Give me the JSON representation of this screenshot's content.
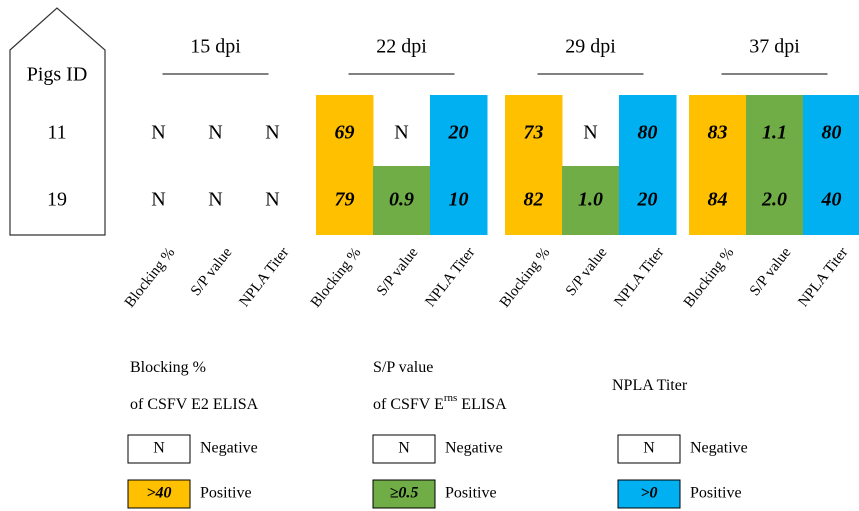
{
  "pigs_label": "Pigs ID",
  "rows": [
    "11",
    "19"
  ],
  "columns": [
    {
      "name": "Blocking %",
      "color": "#FFC000"
    },
    {
      "name": "S/P value",
      "color": "#70AD47"
    },
    {
      "name": "NPLA Titer",
      "color": "#00B0F0"
    }
  ],
  "groups": [
    {
      "label": "15 dpi",
      "cells": [
        [
          "N",
          "N",
          "N"
        ],
        [
          "N",
          "N",
          "N"
        ]
      ]
    },
    {
      "label": "22 dpi",
      "cells": [
        [
          "69",
          "N",
          "20"
        ],
        [
          "79",
          "0.9",
          "10"
        ]
      ]
    },
    {
      "label": "29 dpi",
      "cells": [
        [
          "73",
          "N",
          "80"
        ],
        [
          "82",
          "1.0",
          "20"
        ]
      ]
    },
    {
      "label": "37 dpi",
      "cells": [
        [
          "83",
          "1.1",
          "80"
        ],
        [
          "84",
          "2.0",
          "40"
        ]
      ]
    }
  ],
  "legend": [
    {
      "title": [
        [
          "Blocking %"
        ],
        [
          "of CSFV E2 ELISA"
        ]
      ],
      "negative_key": "N",
      "negative": "Negative",
      "positive_key": ">40",
      "positive": "Positive"
    },
    {
      "title": [
        [
          "S/P value"
        ],
        [
          "of CSFV E",
          "rns",
          " ELISA"
        ]
      ],
      "negative_key": "N",
      "negative": "Negative",
      "positive_key": "≥0.5",
      "positive": "Positive"
    },
    {
      "title": [
        [
          "NPLA Titer"
        ]
      ],
      "negative_key": "N",
      "negative": "Negative",
      "positive_key": ">0",
      "positive": "Positive"
    }
  ]
}
